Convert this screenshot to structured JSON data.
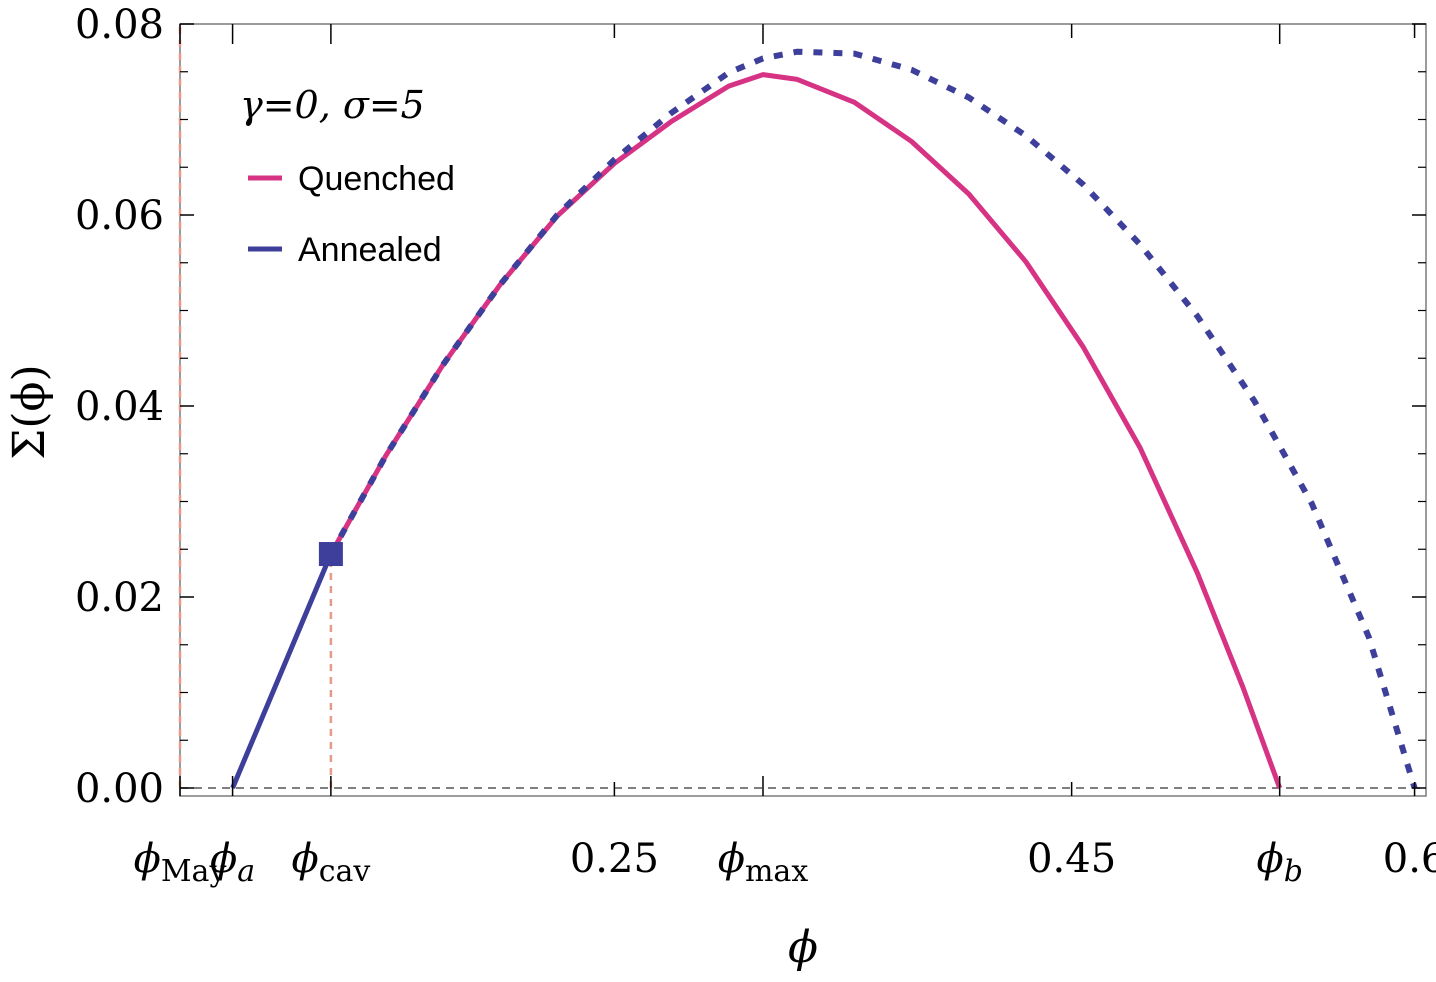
{
  "chart_data": {
    "type": "line",
    "xlabel": "ϕ",
    "ylabel": "Σ(ϕ)",
    "xlim": [
      0.06,
      0.605
    ],
    "ylim": [
      0,
      0.08
    ],
    "grid": false,
    "x_ticks": [
      {
        "value": 0.06,
        "label": "ϕ",
        "sub": "May"
      },
      {
        "value": 0.083,
        "label": "ϕ",
        "sub": "a"
      },
      {
        "value": 0.126,
        "label": "ϕ",
        "sub": "cav"
      },
      {
        "value": 0.25,
        "label": "0.25",
        "sub": ""
      },
      {
        "value": 0.315,
        "label": "ϕ",
        "sub": "max"
      },
      {
        "value": 0.45,
        "label": "0.45",
        "sub": ""
      },
      {
        "value": 0.541,
        "label": "ϕ",
        "sub": "b"
      },
      {
        "value": 0.6,
        "label": "0.6",
        "sub": ""
      }
    ],
    "y_ticks": [
      {
        "value": 0.0,
        "label": "0.00"
      },
      {
        "value": 0.02,
        "label": "0.02"
      },
      {
        "value": 0.04,
        "label": "0.04"
      },
      {
        "value": 0.06,
        "label": "0.06"
      },
      {
        "value": 0.08,
        "label": "0.08"
      }
    ],
    "legend": {
      "title": "γ=0, σ=5",
      "position": "top-left",
      "entries": [
        {
          "label": "Quenched",
          "color": "#d63384"
        },
        {
          "label": "Annealed",
          "color": "#3d3f9a"
        }
      ]
    },
    "series": [
      {
        "name": "Quenched",
        "color": "#d63384",
        "style": "solid",
        "x": [
          0.126,
          0.15,
          0.175,
          0.2,
          0.225,
          0.25,
          0.275,
          0.3,
          0.315,
          0.33,
          0.355,
          0.38,
          0.405,
          0.43,
          0.455,
          0.48,
          0.505,
          0.525,
          0.541
        ],
        "y": [
          0.0245,
          0.0348,
          0.0443,
          0.0527,
          0.0599,
          0.0654,
          0.0698,
          0.0735,
          0.0747,
          0.0742,
          0.0718,
          0.0677,
          0.0622,
          0.0551,
          0.0462,
          0.0356,
          0.0225,
          0.0105,
          0.0
        ]
      },
      {
        "name": "Annealed",
        "color": "#3d3f9a",
        "style": "dotted",
        "x": [
          0.126,
          0.15,
          0.175,
          0.2,
          0.225,
          0.25,
          0.275,
          0.3,
          0.315,
          0.33,
          0.355,
          0.38,
          0.405,
          0.43,
          0.455,
          0.48,
          0.505,
          0.53,
          0.555,
          0.58,
          0.6
        ],
        "y": [
          0.0245,
          0.0348,
          0.0443,
          0.0527,
          0.06,
          0.0658,
          0.0707,
          0.0749,
          0.0764,
          0.0771,
          0.0769,
          0.0752,
          0.0723,
          0.0683,
          0.0632,
          0.0569,
          0.0494,
          0.0405,
          0.0298,
          0.0158,
          0.0
        ]
      },
      {
        "name": "Annealed",
        "color": "#3d3f9a",
        "style": "solid",
        "x": [
          0.083,
          0.126
        ],
        "y": [
          0.0,
          0.0245
        ]
      }
    ],
    "marker": {
      "x": 0.126,
      "y": 0.0245,
      "shape": "square",
      "color": "#3d3f9a"
    },
    "vertical_lines": [
      {
        "x": 0.06,
        "y_top": 0.08,
        "color": "#e89a8a",
        "style": "dashed"
      },
      {
        "x": 0.126,
        "y_top": 0.0245,
        "color": "#e89a8a",
        "style": "dashed"
      }
    ],
    "horizontal_lines": [
      {
        "y": 0.0,
        "color": "#555555",
        "style": "dashed"
      }
    ]
  }
}
